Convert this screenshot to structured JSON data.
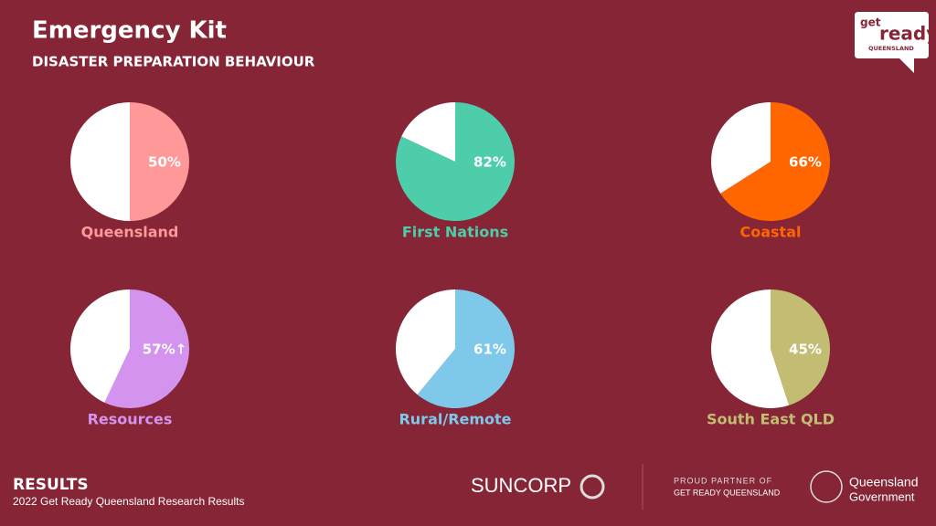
{
  "header": {
    "title": "Emergency Kit",
    "subtitle": "DISASTER PREPARATION BEHAVIOUR"
  },
  "chart_data": [
    {
      "type": "pie",
      "title": "Queensland",
      "values": [
        50,
        50
      ],
      "value_labels": [
        "50%",
        null
      ],
      "colors": [
        "#ff9999",
        "#ffffff"
      ]
    },
    {
      "type": "pie",
      "title": "First Nations",
      "values": [
        82,
        18
      ],
      "value_labels": [
        "82%",
        null
      ],
      "colors": [
        "#4ecdaa",
        "#ffffff"
      ]
    },
    {
      "type": "pie",
      "title": "Coastal",
      "values": [
        66,
        34
      ],
      "value_labels": [
        "66%",
        null
      ],
      "colors": [
        "#ff6600",
        "#ffffff"
      ]
    },
    {
      "type": "pie",
      "title": "Resources",
      "values": [
        57,
        43
      ],
      "value_labels": [
        "57%↑",
        null
      ],
      "colors": [
        "#d393ee",
        "#ffffff"
      ]
    },
    {
      "type": "pie",
      "title": "Rural/Remote",
      "values": [
        61,
        39
      ],
      "value_labels": [
        "61%",
        null
      ],
      "colors": [
        "#7ec8ea",
        "#ffffff"
      ]
    },
    {
      "type": "pie",
      "title": "South East QLD",
      "values": [
        45,
        55
      ],
      "value_labels": [
        "45%",
        null
      ],
      "colors": [
        "#c3bd73",
        "#ffffff"
      ]
    }
  ],
  "footer": {
    "title": "RESULTS",
    "subtitle": "2022 Get Ready Queensland Research Results"
  },
  "logos": {
    "get": "get",
    "ready": "ready",
    "queensland": "QUEENSLAND",
    "suncorp": "SUNCORP",
    "partner_line1": "PROUD PARTNER OF",
    "partner_line2": "GET READY QUEENSLAND",
    "gov_line1": "Queensland",
    "gov_line2": "Government"
  }
}
